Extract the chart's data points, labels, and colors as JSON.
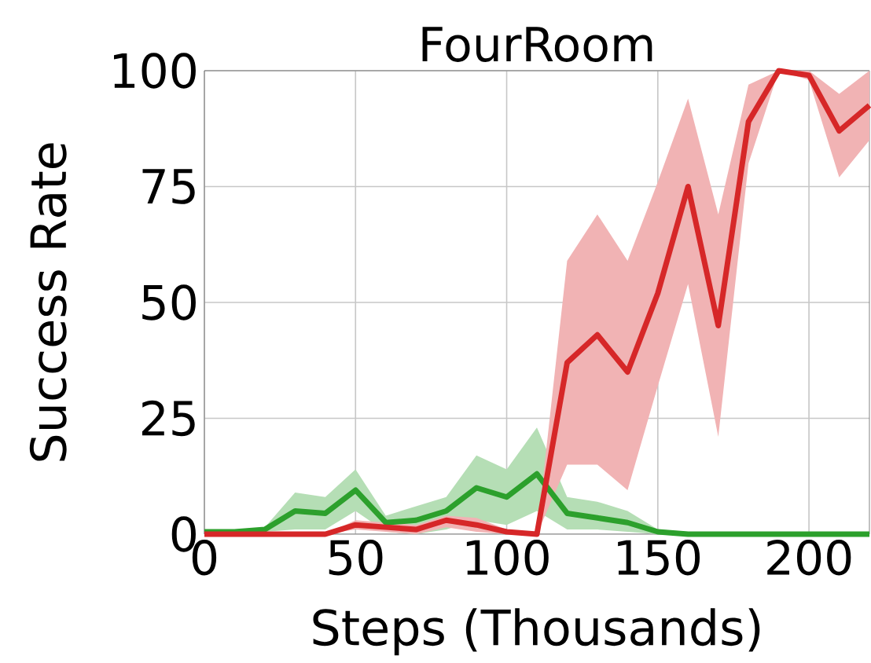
{
  "chart_data": {
    "type": "line",
    "title": "FourRoom",
    "xlabel": "Steps (Thousands)",
    "ylabel": "Success Rate",
    "x": [
      0,
      10,
      20,
      30,
      40,
      50,
      60,
      70,
      80,
      90,
      100,
      110,
      120,
      130,
      140,
      150,
      160,
      170,
      180,
      190,
      200,
      210,
      220
    ],
    "series": [
      {
        "color": "#2ca02c",
        "values": [
          0.5,
          0.5,
          1,
          5,
          4.5,
          9.5,
          2.5,
          3,
          5,
          10,
          8,
          13,
          4.5,
          3.5,
          2.5,
          0.5,
          0,
          0,
          0,
          0,
          0,
          0,
          0
        ],
        "lower": [
          0,
          0,
          0.5,
          1,
          1,
          5,
          0.5,
          0,
          1,
          3,
          2,
          5,
          1,
          1,
          0.5,
          0,
          0,
          0,
          0,
          0,
          0,
          0,
          0
        ],
        "upper": [
          1,
          1,
          1.5,
          9,
          8,
          14,
          4,
          6,
          8,
          17,
          14,
          23,
          8,
          7,
          5,
          1,
          0.5,
          0.5,
          0.5,
          0.5,
          0.5,
          0.5,
          0.5
        ]
      },
      {
        "color": "#d62728",
        "values": [
          0,
          0,
          0,
          0,
          0,
          2,
          1.5,
          1,
          3,
          2,
          0.5,
          0,
          37,
          43,
          35,
          52,
          75,
          45,
          89,
          100,
          99,
          87,
          92.5
        ],
        "lower": [
          0,
          0,
          0,
          0,
          0,
          1,
          0.5,
          0,
          1.5,
          0.5,
          0,
          0,
          15,
          15,
          9.5,
          32,
          54,
          21,
          80,
          100,
          98,
          77,
          85
        ],
        "upper": [
          0,
          0,
          0,
          0,
          0,
          3,
          2.5,
          2,
          4,
          3.5,
          1,
          0,
          59,
          69,
          59,
          76,
          94,
          69,
          97,
          100,
          100,
          95,
          100
        ]
      }
    ],
    "xlim": [
      0,
      220
    ],
    "ylim": [
      0,
      100
    ],
    "xticks": [
      0,
      50,
      100,
      150,
      200
    ],
    "yticks": [
      0,
      25,
      50,
      75,
      100
    ],
    "grid": true,
    "marker": "none",
    "line_style": "solid"
  }
}
